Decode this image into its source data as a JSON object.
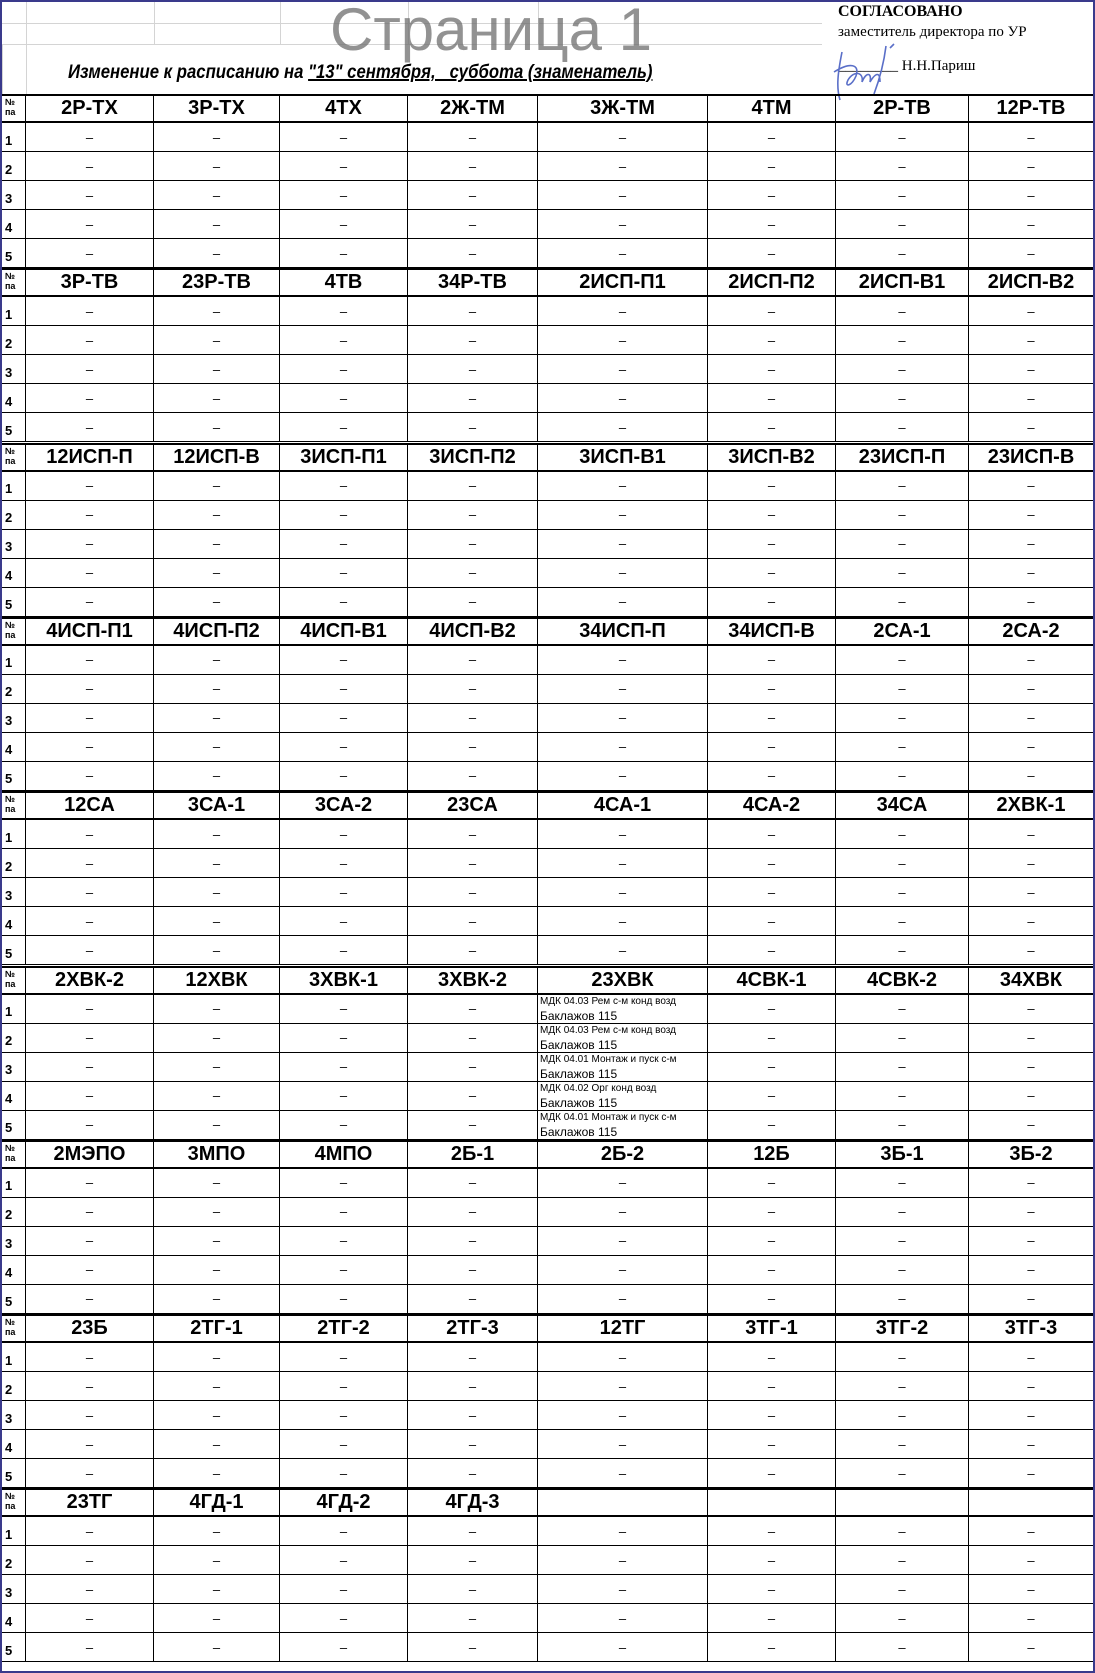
{
  "header": {
    "title_prefix": "Изменение к расписанию на ",
    "title_underlined": "\"13\" сентября,   суббота (знаменатель)",
    "approval": "СОГЛАСОВАНО",
    "approver_role": "заместитель директора по УР",
    "approver_name": "Н.Н.Париш",
    "signature_line": "________"
  },
  "row_header": [
    "№",
    "па"
  ],
  "watermark": "Страница 1",
  "blocks": [
    {
      "groups": [
        "2Р-ТХ",
        "3Р-ТХ",
        "4ТХ",
        "2Ж-ТМ",
        "3Ж-ТМ",
        "4ТМ",
        "2Р-ТВ",
        "12Р-ТВ"
      ],
      "rows": [
        [
          "–",
          "–",
          "–",
          "–",
          "–",
          "–",
          "–",
          "–"
        ],
        [
          "–",
          "–",
          "–",
          "–",
          "–",
          "–",
          "–",
          "–"
        ],
        [
          "–",
          "–",
          "–",
          "–",
          "–",
          "–",
          "–",
          "–"
        ],
        [
          "–",
          "–",
          "–",
          "–",
          "–",
          "–",
          "–",
          "–"
        ],
        [
          "–",
          "–",
          "–",
          "–",
          "–",
          "–",
          "–",
          "–"
        ]
      ]
    },
    {
      "groups": [
        "3Р-ТВ",
        "23Р-ТВ",
        "4ТВ",
        "34Р-ТВ",
        "2ИСП-П1",
        "2ИСП-П2",
        "2ИСП-В1",
        "2ИСП-В2"
      ],
      "rows": [
        [
          "–",
          "–",
          "–",
          "–",
          "–",
          "–",
          "–",
          "–"
        ],
        [
          "–",
          "–",
          "–",
          "–",
          "–",
          "–",
          "–",
          "–"
        ],
        [
          "–",
          "–",
          "–",
          "–",
          "–",
          "–",
          "–",
          "–"
        ],
        [
          "–",
          "–",
          "–",
          "–",
          "–",
          "–",
          "–",
          "–"
        ],
        [
          "–",
          "–",
          "–",
          "–",
          "–",
          "–",
          "–",
          "–"
        ]
      ]
    },
    {
      "groups": [
        "12ИСП-П",
        "12ИСП-В",
        "3ИСП-П1",
        "3ИСП-П2",
        "3ИСП-В1",
        "3ИСП-В2",
        "23ИСП-П",
        "23ИСП-В"
      ],
      "rows": [
        [
          "–",
          "–",
          "–",
          "–",
          "–",
          "–",
          "–",
          "–"
        ],
        [
          "–",
          "–",
          "–",
          "–",
          "–",
          "–",
          "–",
          "–"
        ],
        [
          "–",
          "–",
          "–",
          "–",
          "–",
          "–",
          "–",
          "–"
        ],
        [
          "–",
          "–",
          "–",
          "–",
          "–",
          "–",
          "–",
          "–"
        ],
        [
          "–",
          "–",
          "–",
          "–",
          "–",
          "–",
          "–",
          "–"
        ]
      ]
    },
    {
      "groups": [
        "4ИСП-П1",
        "4ИСП-П2",
        "4ИСП-В1",
        "4ИСП-В2",
        "34ИСП-П",
        "34ИСП-В",
        "2СА-1",
        "2СА-2"
      ],
      "rows": [
        [
          "–",
          "–",
          "–",
          "–",
          "–",
          "–",
          "–",
          "–"
        ],
        [
          "–",
          "–",
          "–",
          "–",
          "–",
          "–",
          "–",
          "–"
        ],
        [
          "–",
          "–",
          "–",
          "–",
          "–",
          "–",
          "–",
          "–"
        ],
        [
          "–",
          "–",
          "–",
          "–",
          "–",
          "–",
          "–",
          "–"
        ],
        [
          "–",
          "–",
          "–",
          "–",
          "–",
          "–",
          "–",
          "–"
        ]
      ]
    },
    {
      "groups": [
        "12СА",
        "3СА-1",
        "3СА-2",
        "23СА",
        "4СА-1",
        "4СА-2",
        "34СА",
        "2ХВК-1"
      ],
      "rows": [
        [
          "–",
          "–",
          "–",
          "–",
          "–",
          "–",
          "–",
          "–"
        ],
        [
          "–",
          "–",
          "–",
          "–",
          "–",
          "–",
          "–",
          "–"
        ],
        [
          "–",
          "–",
          "–",
          "–",
          "–",
          "–",
          "–",
          "–"
        ],
        [
          "–",
          "–",
          "–",
          "–",
          "–",
          "–",
          "–",
          "–"
        ],
        [
          "–",
          "–",
          "–",
          "–",
          "–",
          "–",
          "–",
          "–"
        ]
      ]
    },
    {
      "groups": [
        "2ХВК-2",
        "12ХВК",
        "3ХВК-1",
        "3ХВК-2",
        "23ХВК",
        "4СВК-1",
        "4СВК-2",
        "34ХВК"
      ],
      "rows": [
        [
          "–",
          "–",
          "–",
          "–",
          {
            "subject": "МДК 04.03 Рем с-м конд возд",
            "teacher": "Баклажов 115"
          },
          "–",
          "–",
          "–"
        ],
        [
          "–",
          "–",
          "–",
          "–",
          {
            "subject": "МДК 04.03 Рем с-м конд возд",
            "teacher": "Баклажов 115"
          },
          "–",
          "–",
          "–"
        ],
        [
          "–",
          "–",
          "–",
          "–",
          {
            "subject": "МДК 04.01 Монтаж и пуск с-м",
            "teacher": "Баклажов 115"
          },
          "–",
          "–",
          "–"
        ],
        [
          "–",
          "–",
          "–",
          "–",
          {
            "subject": "МДК 04.02 Орг конд возд",
            "teacher": "Баклажов 115"
          },
          "–",
          "–",
          "–"
        ],
        [
          "–",
          "–",
          "–",
          "–",
          {
            "subject": "МДК 04.01 Монтаж и пуск с-м",
            "teacher": "Баклажов 115"
          },
          "–",
          "–",
          "–"
        ]
      ]
    },
    {
      "groups": [
        "2МЭПО",
        "3МПО",
        "4МПО",
        "2Б-1",
        "2Б-2",
        "12Б",
        "3Б-1",
        "3Б-2"
      ],
      "rows": [
        [
          "–",
          "–",
          "–",
          "–",
          "–",
          "–",
          "–",
          "–"
        ],
        [
          "–",
          "–",
          "–",
          "–",
          "–",
          "–",
          "–",
          "–"
        ],
        [
          "–",
          "–",
          "–",
          "–",
          "–",
          "–",
          "–",
          "–"
        ],
        [
          "–",
          "–",
          "–",
          "–",
          "–",
          "–",
          "–",
          "–"
        ],
        [
          "–",
          "–",
          "–",
          "–",
          "–",
          "–",
          "–",
          "–"
        ]
      ]
    },
    {
      "groups": [
        "23Б",
        "2ТГ-1",
        "2ТГ-2",
        "2ТГ-3",
        "12ТГ",
        "3ТГ-1",
        "3ТГ-2",
        "3ТГ-3"
      ],
      "rows": [
        [
          "–",
          "–",
          "–",
          "–",
          "–",
          "–",
          "–",
          "–"
        ],
        [
          "–",
          "–",
          "–",
          "–",
          "–",
          "–",
          "–",
          "–"
        ],
        [
          "–",
          "–",
          "–",
          "–",
          "–",
          "–",
          "–",
          "–"
        ],
        [
          "–",
          "–",
          "–",
          "–",
          "–",
          "–",
          "–",
          "–"
        ],
        [
          "–",
          "–",
          "–",
          "–",
          "–",
          "–",
          "–",
          "–"
        ]
      ]
    },
    {
      "groups": [
        "23ТГ",
        "4ГД-1",
        "4ГД-2",
        "4ГД-3",
        "",
        "",
        "",
        ""
      ],
      "rows": [
        [
          "–",
          "–",
          "–",
          "–",
          "–",
          "–",
          "–",
          "–"
        ],
        [
          "–",
          "–",
          "–",
          "–",
          "–",
          "–",
          "–",
          "–"
        ],
        [
          "–",
          "–",
          "–",
          "–",
          "–",
          "–",
          "–",
          "–"
        ],
        [
          "–",
          "–",
          "–",
          "–",
          "–",
          "–",
          "–",
          "–"
        ],
        [
          "–",
          "–",
          "–",
          "–",
          "–",
          "–",
          "–",
          "–"
        ]
      ]
    }
  ],
  "pair_numbers": [
    "1",
    "2",
    "3",
    "4",
    "5"
  ]
}
